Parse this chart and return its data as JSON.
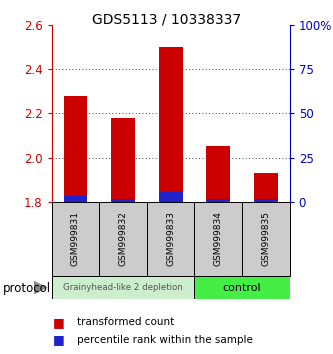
{
  "title": "GDS5113 / 10338337",
  "samples": [
    "GSM999831",
    "GSM999832",
    "GSM999833",
    "GSM999834",
    "GSM999835"
  ],
  "red_values": [
    2.28,
    2.18,
    2.5,
    2.05,
    1.93
  ],
  "blue_values": [
    1.82,
    1.81,
    1.84,
    1.81,
    1.81
  ],
  "ymin": 1.8,
  "ymax": 2.6,
  "yticks": [
    1.8,
    2.0,
    2.2,
    2.4,
    2.6
  ],
  "y2labels": [
    "0",
    "25",
    "50",
    "75",
    "100%"
  ],
  "y2ticks": [
    0,
    25,
    50,
    75,
    100
  ],
  "left_color": "#cc0000",
  "right_color": "#0000cc",
  "bar_red_color": "#cc0000",
  "bar_blue_color": "#2222cc",
  "group1_label": "Grainyhead-like 2 depletion",
  "group2_label": "control",
  "group1_bg": "#cceecc",
  "group2_bg": "#44ee44",
  "sample_box_bg": "#cccccc",
  "legend_red_label": "transformed count",
  "legend_blue_label": "percentile rank within the sample",
  "protocol_label": "protocol"
}
